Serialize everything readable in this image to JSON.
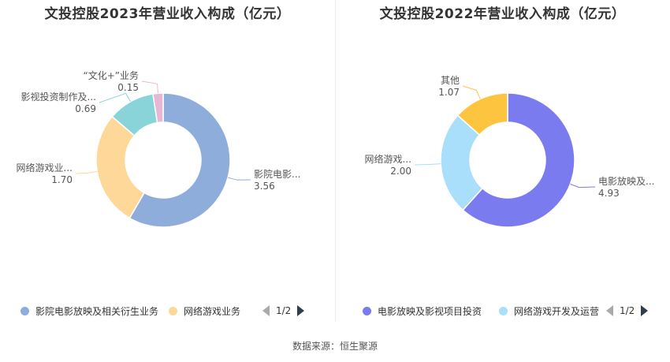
{
  "source_text": "数据来源：恒生聚源",
  "chart_data": [
    {
      "type": "pie",
      "title": "文投控股2023年营业收入构成（亿元）",
      "slices": [
        {
          "label": "影院电影...",
          "full_label": "影院电影放映及相关衍生业务",
          "value": 3.56,
          "value_text": "3.56",
          "color": "#8fadda"
        },
        {
          "label": "网络游戏业...",
          "full_label": "网络游戏业务",
          "value": 1.7,
          "value_text": "1.70",
          "color": "#fdd898"
        },
        {
          "label": "影视投资制作及...",
          "value": 0.69,
          "value_text": "0.69",
          "color": "#88d4d8"
        },
        {
          "label": "“文化+”业务",
          "value": 0.15,
          "value_text": "0.15",
          "color": "#e6b8d5"
        }
      ],
      "legend": {
        "position": "bottom",
        "items": [
          {
            "label": "影院电影放映及相关衍生业务",
            "color": "#8fadda"
          },
          {
            "label": "网络游戏业务",
            "color": "#fdd898"
          }
        ],
        "page": "1/2"
      }
    },
    {
      "type": "pie",
      "title": "文投控股2022年营业收入构成（亿元）",
      "slices": [
        {
          "label": "电影放映及...",
          "full_label": "电影放映及影视项目投资",
          "value": 4.93,
          "value_text": "4.93",
          "color": "#7b7bf0"
        },
        {
          "label": "网络游戏...",
          "full_label": "网络游戏开发及运营",
          "value": 2.0,
          "value_text": "2.00",
          "color": "#a9dffa"
        },
        {
          "label": "其他",
          "value": 1.07,
          "value_text": "1.07",
          "color": "#fdc440"
        }
      ],
      "legend": {
        "position": "bottom",
        "items": [
          {
            "label": "电影放映及影视项目投资",
            "color": "#7b7bf0"
          },
          {
            "label": "网络游戏开发及运营",
            "color": "#a9dffa"
          }
        ],
        "page": "1/2"
      }
    }
  ]
}
